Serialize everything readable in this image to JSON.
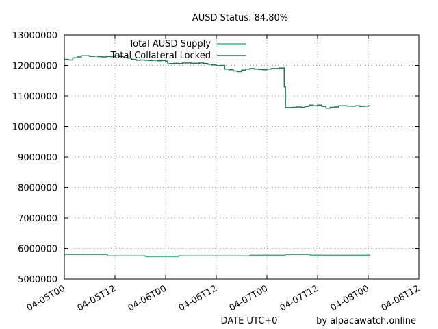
{
  "chart_data": {
    "type": "line",
    "title": "AUSD Status: 84.80%",
    "xlabel": "DATE UTC+0",
    "ylabel": "",
    "footer": "by alpacawatch.online",
    "legend_position": "top-left",
    "grid": true,
    "x_unit": "hours since 04-05T00",
    "xlim": [
      0,
      84
    ],
    "ylim": [
      5000000,
      13000000
    ],
    "x_ticks": [
      "04-05T00",
      "04-05T12",
      "04-06T00",
      "04-06T12",
      "04-07T00",
      "04-07T12",
      "04-08T00",
      "04-08T12"
    ],
    "y_ticks": [
      "5000000",
      "6000000",
      "7000000",
      "8000000",
      "9000000",
      "10000000",
      "11000000",
      "12000000",
      "13000000"
    ],
    "series": [
      {
        "name": "Total AUSD Supply",
        "color": "#2ebd7e",
        "x": [
          0,
          10,
          10.2,
          19,
          19.2,
          26,
          27,
          43,
          44,
          52,
          52.3,
          58,
          58.3,
          72.5
        ],
        "values": [
          5800000,
          5800000,
          5760000,
          5760000,
          5740000,
          5740000,
          5760000,
          5760000,
          5780000,
          5780000,
          5800000,
          5800000,
          5780000,
          5780000
        ]
      },
      {
        "name": "Total Collateral Locked",
        "color": "#1f7a4f",
        "x": [
          0,
          1,
          2,
          3,
          4,
          5,
          6,
          7,
          8,
          9,
          10,
          11,
          12,
          13,
          14,
          15,
          16,
          17,
          18,
          19,
          20,
          21,
          22,
          23,
          24,
          24.5,
          25,
          26,
          27,
          28,
          29,
          30,
          31,
          32,
          33,
          34,
          35,
          36,
          37,
          38,
          39,
          40,
          41,
          42,
          43,
          44,
          45,
          46,
          47,
          48,
          49,
          50,
          51,
          52,
          52.1,
          52.4,
          53,
          54,
          55,
          56,
          57,
          58,
          59,
          60,
          61,
          62,
          63,
          64,
          65,
          66,
          67,
          68,
          69,
          70,
          71,
          72,
          72.5
        ],
        "values": [
          12200000,
          12180000,
          12250000,
          12280000,
          12320000,
          12320000,
          12300000,
          12310000,
          12290000,
          12280000,
          12300000,
          12290000,
          12320000,
          12300000,
          12260000,
          12240000,
          12200000,
          12170000,
          12180000,
          12170000,
          12160000,
          12170000,
          12150000,
          12160000,
          12140000,
          12050000,
          12060000,
          12070000,
          12060000,
          12080000,
          12080000,
          12070000,
          12070000,
          12080000,
          12060000,
          12040000,
          12020000,
          11990000,
          12000000,
          11880000,
          11860000,
          11820000,
          11800000,
          11850000,
          11880000,
          11900000,
          11880000,
          11870000,
          11860000,
          11880000,
          11900000,
          11900000,
          11920000,
          11920000,
          11300000,
          10620000,
          10620000,
          10630000,
          10640000,
          10630000,
          10660000,
          10700000,
          10680000,
          10700000,
          10660000,
          10600000,
          10630000,
          10640000,
          10680000,
          10680000,
          10670000,
          10670000,
          10680000,
          10660000,
          10670000,
          10680000,
          10680000
        ]
      }
    ]
  }
}
